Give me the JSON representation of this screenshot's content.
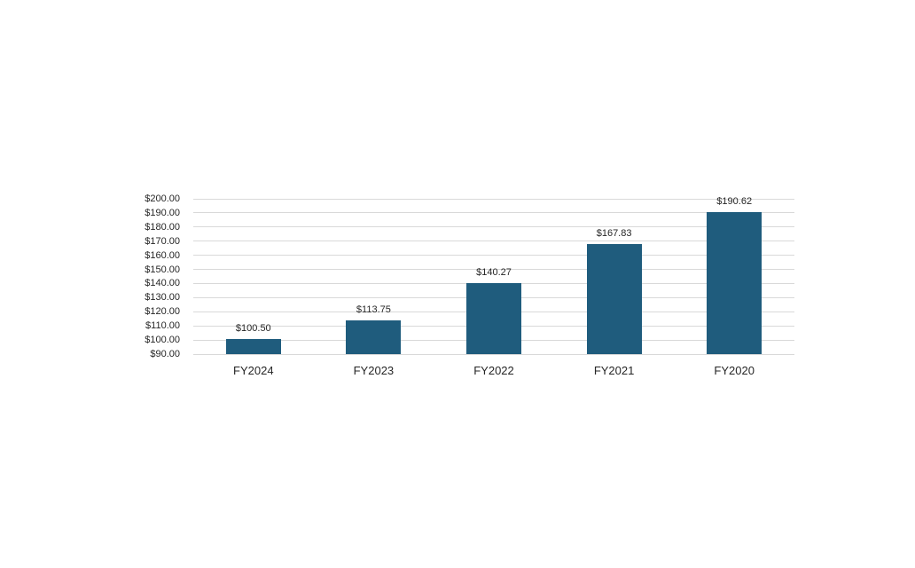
{
  "chart_data": {
    "type": "bar",
    "title": "",
    "xlabel": "",
    "ylabel": "",
    "categories": [
      "FY2024",
      "FY2023",
      "FY2022",
      "FY2021",
      "FY2020"
    ],
    "values": [
      100.5,
      113.75,
      140.27,
      167.83,
      190.62
    ],
    "value_labels": [
      "$100.50",
      "$113.75",
      "$140.27",
      "$167.83",
      "$190.62"
    ],
    "ylim": [
      90,
      200
    ],
    "yticks": [
      {
        "value": 200,
        "label": "$200.00"
      },
      {
        "value": 190,
        "label": "$190.00"
      },
      {
        "value": 180,
        "label": "$180.00"
      },
      {
        "value": 170,
        "label": "$170.00"
      },
      {
        "value": 160,
        "label": "$160.00"
      },
      {
        "value": 150,
        "label": "$150.00"
      },
      {
        "value": 140,
        "label": "$140.00"
      },
      {
        "value": 130,
        "label": "$130.00"
      },
      {
        "value": 120,
        "label": "$120.00"
      },
      {
        "value": 110,
        "label": "$110.00"
      },
      {
        "value": 100,
        "label": "$100.00"
      },
      {
        "value": 90,
        "label": "$90.00"
      }
    ],
    "grid": true,
    "legend_position": "none",
    "colors": {
      "bar": "#1f5c7d",
      "gridline": "#d9d9d9",
      "text": "#262626",
      "background": "#ffffff"
    }
  }
}
